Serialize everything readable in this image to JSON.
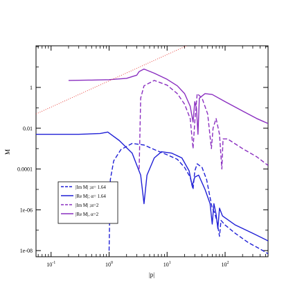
{
  "chart_data": {
    "type": "line",
    "xlabel": "|p|",
    "ylabel": "M",
    "x_scale": "log",
    "y_scale": "log",
    "xlim": [
      0.055,
      550
    ],
    "ylim": [
      5e-09,
      110
    ],
    "x_ticks": [
      {
        "value": 0.1,
        "base": "10",
        "exp": "-1"
      },
      {
        "value": 1,
        "base": "10",
        "exp": "0"
      },
      {
        "value": 10,
        "base": "10",
        "exp": "1"
      },
      {
        "value": 100,
        "base": "10",
        "exp": "2"
      }
    ],
    "y_ticks": [
      {
        "value": 1,
        "label": "1"
      },
      {
        "value": 0.01,
        "label": "0.01"
      },
      {
        "value": 0.0001,
        "label": "0.0001"
      },
      {
        "value": 1e-06,
        "label": "1e-06"
      },
      {
        "value": 1e-08,
        "label": "1e-08"
      }
    ],
    "grid": false,
    "legend_position": "lower-left",
    "series": [
      {
        "name": "|Im M| ;α= 1.64",
        "color": "#1f1fd6",
        "style": "dashed",
        "points": [
          [
            1.0,
            1e-08
          ],
          [
            1.05,
            3e-05
          ],
          [
            1.2,
            0.00025
          ],
          [
            1.6,
            0.0009
          ],
          [
            2.5,
            0.0018
          ],
          [
            4,
            0.0015
          ],
          [
            6,
            0.0009
          ],
          [
            10,
            0.0005
          ],
          [
            15,
            0.0003
          ],
          [
            20,
            0.00012
          ],
          [
            25,
            4e-05
          ],
          [
            28,
            1e-05
          ],
          [
            30,
            8e-05
          ],
          [
            33,
            0.00018
          ],
          [
            40,
            0.00012
          ],
          [
            48,
            3e-05
          ],
          [
            55,
            4e-06
          ],
          [
            60,
            1.2e-06
          ],
          [
            65,
            8e-07
          ],
          [
            72,
            3e-07
          ],
          [
            80,
            5e-08
          ],
          [
            85,
            3e-07
          ],
          [
            100,
            1.8e-07
          ],
          [
            150,
            7e-08
          ],
          [
            250,
            2.5e-08
          ],
          [
            400,
            1.2e-08
          ],
          [
            550,
            7e-09
          ]
        ]
      },
      {
        "name": "|Re M|; α= 1.64",
        "color": "#1f1fd6",
        "style": "solid",
        "points": [
          [
            0.055,
            0.005
          ],
          [
            0.1,
            0.005
          ],
          [
            0.3,
            0.005
          ],
          [
            0.7,
            0.0055
          ],
          [
            0.95,
            0.0065
          ],
          [
            1.05,
            0.0052
          ],
          [
            1.5,
            0.0025
          ],
          [
            2.5,
            0.0006
          ],
          [
            3.5,
            5e-05
          ],
          [
            4.0,
            2e-06
          ],
          [
            4.5,
            5e-05
          ],
          [
            6,
            0.00035
          ],
          [
            8,
            0.0007
          ],
          [
            12,
            0.0006
          ],
          [
            18,
            0.00035
          ],
          [
            24,
            8e-05
          ],
          [
            27,
            1.5e-05
          ],
          [
            30,
            4e-05
          ],
          [
            35,
            5e-05
          ],
          [
            45,
            1e-05
          ],
          [
            55,
            2e-06
          ],
          [
            60,
            2e-07
          ],
          [
            64,
            2e-06
          ],
          [
            70,
            6e-07
          ],
          [
            75,
            1.2e-07
          ],
          [
            80,
            1.2e-06
          ],
          [
            90,
            5e-07
          ],
          [
            150,
            1.8e-07
          ],
          [
            300,
            7e-08
          ],
          [
            550,
            3e-08
          ]
        ]
      },
      {
        "name": "|Im M| ;α=2",
        "color": "#8a2ec0",
        "style": "dashed",
        "points": [
          [
            3.3,
            0.0001
          ],
          [
            3.5,
            0.3
          ],
          [
            4,
            1.2
          ],
          [
            6,
            2.2
          ],
          [
            10,
            1.3
          ],
          [
            15,
            0.5
          ],
          [
            20,
            0.15
          ],
          [
            25,
            0.03
          ],
          [
            28,
            0.001
          ],
          [
            30,
            0.02
          ],
          [
            33,
            0.5
          ],
          [
            40,
            0.3
          ],
          [
            50,
            0.05
          ],
          [
            58,
            0.001
          ],
          [
            62,
            0.01
          ],
          [
            70,
            0.03
          ],
          [
            80,
            0.005
          ],
          [
            88,
            0.0001
          ],
          [
            92,
            0.003
          ],
          [
            110,
            0.003
          ],
          [
            200,
            0.001
          ],
          [
            350,
            0.0004
          ],
          [
            550,
            0.00015
          ]
        ]
      },
      {
        "name": "|Re M|, α=2",
        "color": "#8a2ec0",
        "style": "solid",
        "points": [
          [
            0.2,
            2.2
          ],
          [
            0.5,
            2.3
          ],
          [
            1.0,
            2.4
          ],
          [
            2.0,
            2.8
          ],
          [
            3.0,
            4.0
          ],
          [
            3.3,
            6.0
          ],
          [
            4,
            8
          ],
          [
            6,
            5
          ],
          [
            10,
            2.5
          ],
          [
            15,
            1.2
          ],
          [
            20,
            0.5
          ],
          [
            25,
            0.12
          ],
          [
            28,
            0.02
          ],
          [
            30,
            0.2
          ],
          [
            32,
            0.1
          ],
          [
            34,
            0.005
          ],
          [
            36,
            0.3
          ],
          [
            45,
            0.5
          ],
          [
            60,
            0.45
          ],
          [
            100,
            0.2
          ],
          [
            200,
            0.07
          ],
          [
            350,
            0.03
          ],
          [
            550,
            0.017
          ]
        ]
      },
      {
        "name": "",
        "color": "#e8403a",
        "style": "dotted",
        "points": [
          [
            0.055,
            0.05
          ],
          [
            47,
            300
          ]
        ]
      }
    ],
    "legend": [
      {
        "label": "|Im M| ;α= 1.64",
        "color": "#1f1fd6",
        "style": "dashed"
      },
      {
        "label": "|Re M|; α= 1.64",
        "color": "#1f1fd6",
        "style": "solid"
      },
      {
        "label": "|Im M| ;α=2",
        "color": "#8a2ec0",
        "style": "dashed"
      },
      {
        "label": "|Re M|, α=2",
        "color": "#8a2ec0",
        "style": "solid"
      }
    ]
  }
}
